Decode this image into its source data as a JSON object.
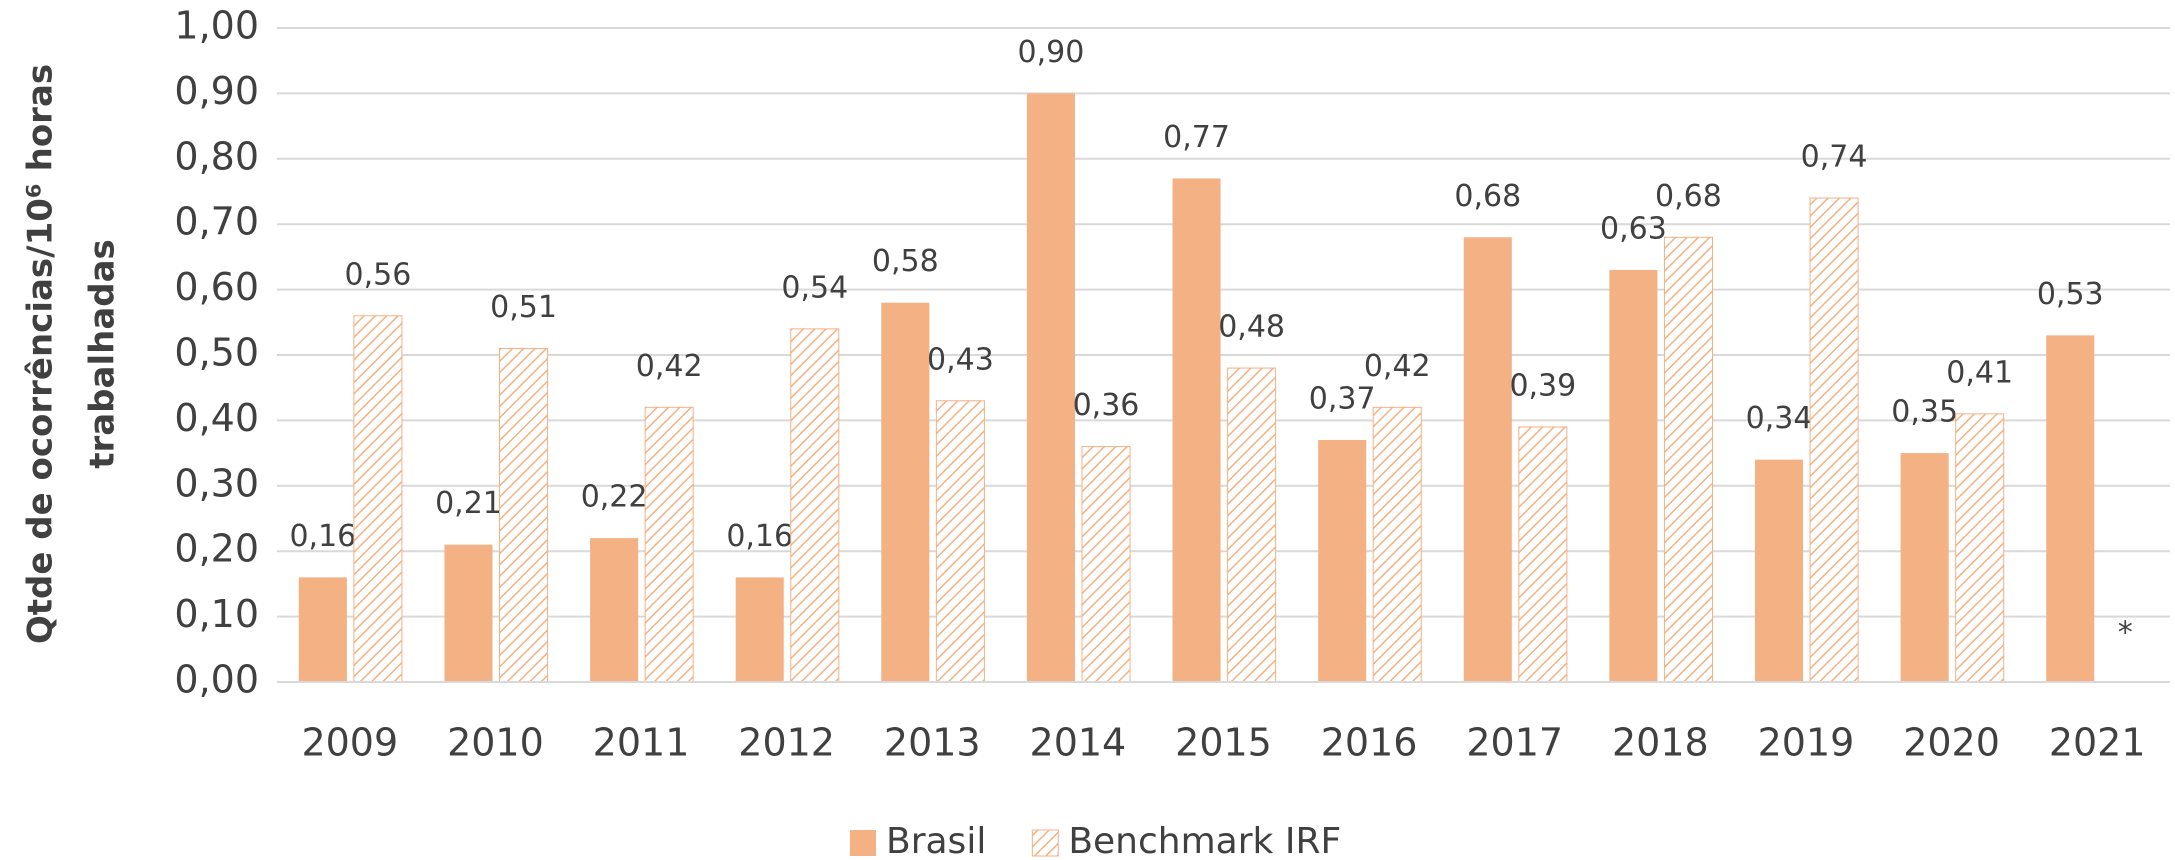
{
  "chart_data": {
    "type": "bar",
    "y_label": [
      "Qtde de ocorrências/10⁶ horas",
      "trabalhadas"
    ],
    "categories": [
      "2009",
      "2010",
      "2011",
      "2012",
      "2013",
      "2014",
      "2015",
      "2016",
      "2017",
      "2018",
      "2019",
      "2020",
      "2021"
    ],
    "series": [
      {
        "name": "Brasil",
        "color": "#f4b183",
        "pattern": "solid",
        "values": [
          0.16,
          0.21,
          0.22,
          0.16,
          0.58,
          0.9,
          0.77,
          0.37,
          0.68,
          0.63,
          0.34,
          0.35,
          0.53
        ],
        "value_labels": [
          "0,16",
          "0,21",
          "0,22",
          "0,16",
          "0,58",
          "0,90",
          "0,77",
          "0,37",
          "0,68",
          "0,63",
          "0,34",
          "0,35",
          "0,53"
        ]
      },
      {
        "name": "Benchmark IRF",
        "color": "#f4b183",
        "pattern": "hatch",
        "values": [
          0.56,
          0.51,
          0.42,
          0.54,
          0.43,
          0.36,
          0.48,
          0.42,
          0.39,
          0.68,
          0.74,
          0.41,
          null
        ],
        "value_labels": [
          "0,56",
          "0,51",
          "0,42",
          "0,54",
          "0,43",
          "0,36",
          "0,48",
          "0,42",
          "0,39",
          "0,68",
          "0,74",
          "0,41",
          null
        ]
      }
    ],
    "annotation": "*",
    "ylim": [
      0,
      1
    ],
    "yticks": [
      {
        "value": 0,
        "label": "0,00"
      },
      {
        "value": 0.1,
        "label": "0,10"
      },
      {
        "value": 0.2,
        "label": "0,20"
      },
      {
        "value": 0.3,
        "label": "0,30"
      },
      {
        "value": 0.4,
        "label": "0,40"
      },
      {
        "value": 0.5,
        "label": "0,50"
      },
      {
        "value": 0.6,
        "label": "0,60"
      },
      {
        "value": 0.7,
        "label": "0,70"
      },
      {
        "value": 0.8,
        "label": "0,80"
      },
      {
        "value": 0.9,
        "label": "0,90"
      },
      {
        "value": 1,
        "label": "1,00"
      }
    ],
    "grid": true,
    "legend": "bottom"
  }
}
